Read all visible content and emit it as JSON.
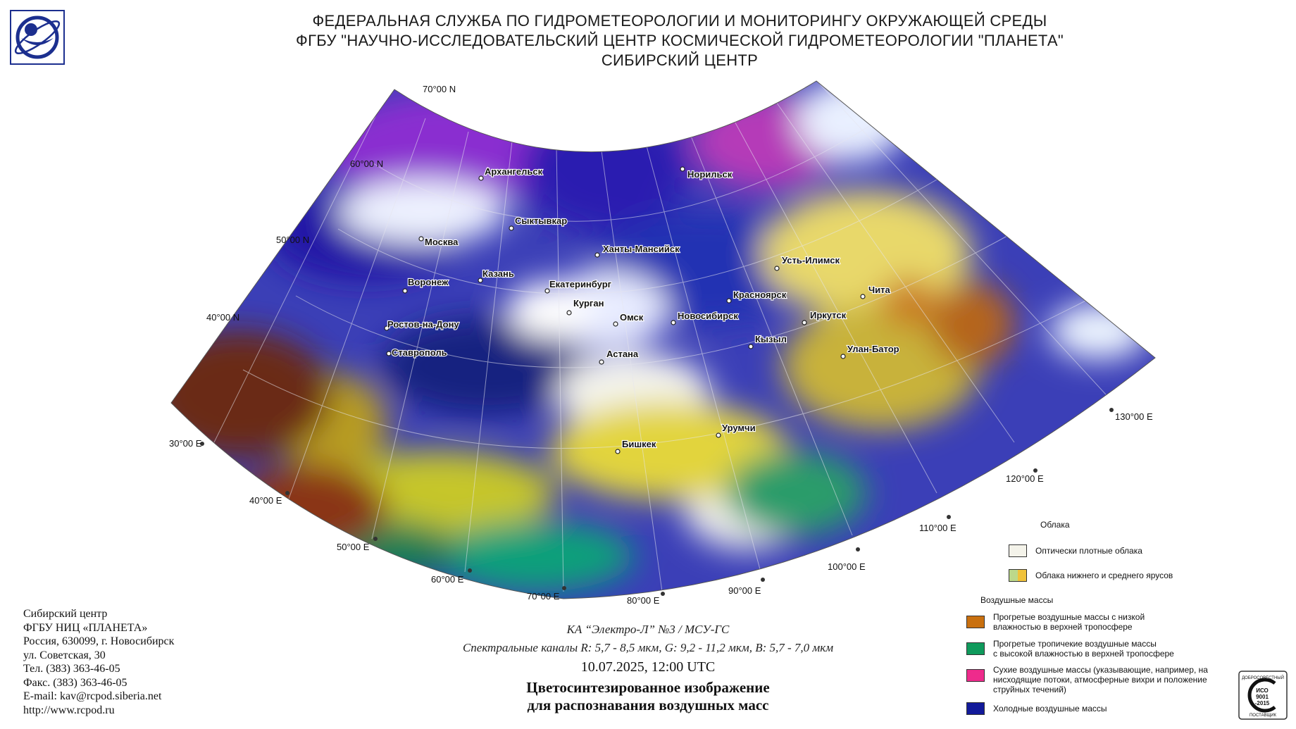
{
  "header": {
    "line1": "ФЕДЕРАЛЬНАЯ СЛУЖБА ПО ГИДРОМЕТЕОРОЛОГИИ И МОНИТОРИНГУ ОКРУЖАЮЩЕЙ СРЕДЫ",
    "line2": "ФГБУ \"НАУЧНО-ИССЛЕДОВАТЕЛЬСКИЙ ЦЕНТР КОСМИЧЕСКОЙ ГИДРОМЕТЕОРОЛОГИИ \"ПЛАНЕТА\"",
    "line3": "СИБИРСКИЙ ЦЕНТР"
  },
  "map": {
    "lat_labels": [
      "70°00 N",
      "60°00 N",
      "50°00 N",
      "40°00 N"
    ],
    "lon_labels": [
      "30°00 E",
      "40°00 E",
      "50°00 E",
      "60°00 E",
      "70°00 E",
      "80°00 E",
      "90°00 E",
      "100°00 E",
      "110°00 E",
      "120°00 E",
      "130°00 E"
    ],
    "cities": [
      "Архангельск",
      "Норильск",
      "Сыктывкар",
      "Москва",
      "Ханты-Мансийск",
      "Казань",
      "Усть-Илимск",
      "Воронеж",
      "Екатеринбург",
      "Чита",
      "Красноярск",
      "Курган",
      "Омск",
      "Новосибирск",
      "Иркутск",
      "Ростов-на-Дону",
      "Кызыл",
      "Улан-Батор",
      "Астана",
      "Ставрополь",
      "Урумчи",
      "Бишкек"
    ]
  },
  "footer": {
    "lines": [
      "Сибирский центр",
      "ФГБУ НИЦ «ПЛАНЕТА»",
      "Россия, 630099, г. Новосибирск",
      "ул. Советская, 30",
      "Тел. (383) 363-46-05",
      "Факс. (383) 363-46-05",
      "E-mail: kav@rcpod.siberia.net",
      "http://www.rcpod.ru"
    ]
  },
  "caption": {
    "satellite": "КА “Электро-Л” №3 / МСУ-ГС",
    "channels": "Спектральные каналы R: 5,7 - 8,5 мкм, G: 9,2 - 11,2 мкм, B: 5,7 - 7,0 мкм",
    "datetime": "10.07.2025, 12:00 UTC",
    "title1": "Цветосинтезированное изображение",
    "title2": "для распознавания воздушных масс"
  },
  "legend": {
    "clouds_header": "Облака",
    "clouds": [
      {
        "label": "Оптически плотные облака",
        "color": "#f4f3ea"
      },
      {
        "label": "Облака нижнего и среднего ярусов",
        "colors": [
          "#bcd88a",
          "#f0c23a"
        ]
      }
    ],
    "air_header": "Воздушные массы",
    "air": [
      {
        "label": [
          "Прогретые воздушные массы с низкой",
          "влажностью в верхней тропосфере"
        ],
        "color": "#c9700f"
      },
      {
        "label": [
          "Прогретые тропичекие воздушные массы",
          "с высокой влажностью в верхней тропосфере"
        ],
        "color": "#0f9a5c"
      },
      {
        "label": [
          "Сухие воздушные массы (указывающие, например, на",
          "нисходящие потоки, атмосферные вихри и положение",
          "струйных течений)"
        ],
        "color": "#ee2b8c"
      },
      {
        "label": [
          "Холодные воздушные массы"
        ],
        "color": "#121a9a"
      }
    ]
  },
  "badge": {
    "top": "ДОБРОСОВЕСТНЫЙ",
    "iso1": "ИСО",
    "iso2": "9001",
    "iso3": "-2015",
    "bottom": "ПОСТАВЩИК"
  }
}
